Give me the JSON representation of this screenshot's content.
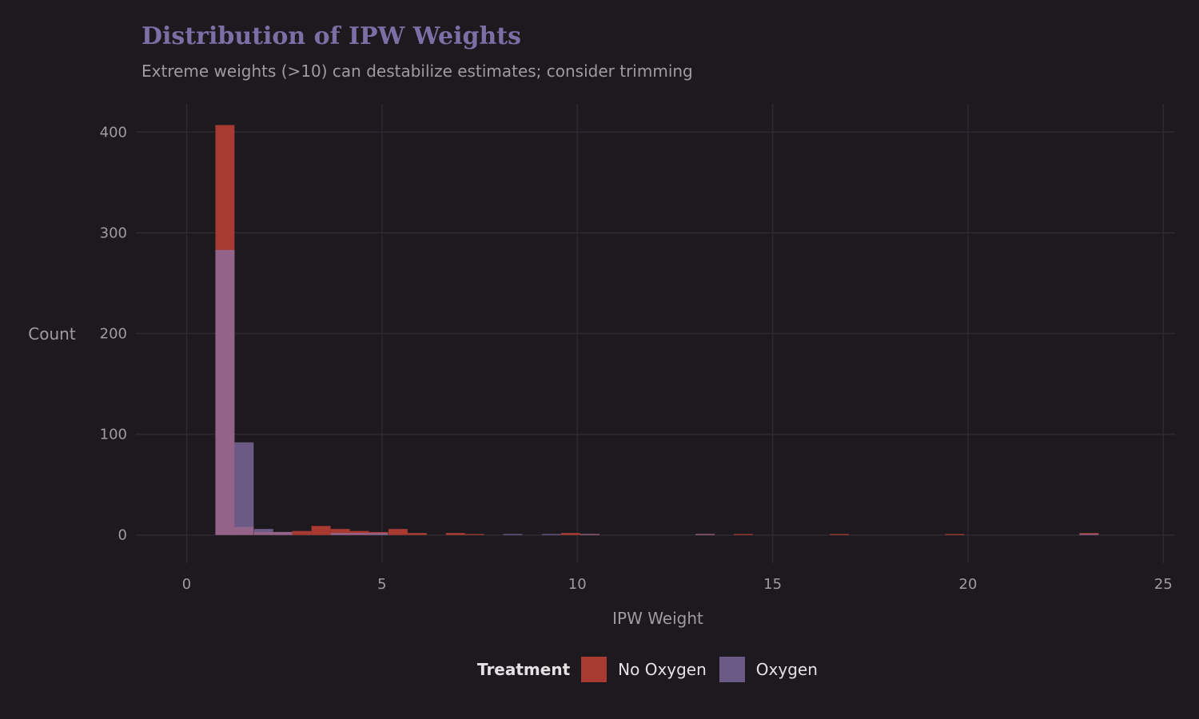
{
  "chart_data": {
    "type": "bar",
    "subtype": "overlaid histogram",
    "title": "Distribution of IPW Weights",
    "subtitle": "Extreme weights (>10) can destabilize estimates; consider trimming",
    "xlabel": "IPW Weight",
    "ylabel": "Count",
    "xlim": [
      -1.3,
      25.3
    ],
    "ylim": [
      -28,
      428
    ],
    "xticks": [
      "0",
      "5",
      "10",
      "15",
      "20",
      "25"
    ],
    "yticks": [
      "0",
      "100",
      "200",
      "300",
      "400"
    ],
    "grid": true,
    "legend": {
      "title": "Treatment",
      "position": "bottom"
    },
    "bin_centers": [
      0.98,
      1.47,
      1.97,
      2.46,
      2.95,
      3.44,
      3.93,
      4.42,
      4.91,
      5.41,
      5.9,
      6.39,
      6.88,
      7.37,
      7.86,
      8.35,
      8.85,
      9.34,
      9.83,
      10.32,
      10.81,
      11.3,
      11.79,
      12.29,
      12.78,
      13.27,
      13.76,
      14.25,
      14.74,
      15.23,
      15.73,
      16.22,
      16.71,
      17.2,
      17.69,
      18.18,
      18.67,
      19.17,
      19.66,
      20.15,
      20.64,
      21.13,
      21.62,
      22.11,
      22.61,
      23.1
    ],
    "series": [
      {
        "name": "No Oxygen",
        "color": "#a83a32",
        "values": [
          407,
          8,
          3,
          3,
          4,
          9,
          6,
          4,
          3,
          6,
          2,
          0,
          2,
          1,
          0,
          0,
          0,
          0,
          2,
          1,
          0,
          0,
          0,
          0,
          0,
          1,
          0,
          1,
          0,
          0,
          0,
          0,
          1,
          0,
          0,
          0,
          0,
          0,
          1,
          0,
          0,
          0,
          0,
          0,
          0,
          2
        ]
      },
      {
        "name": "Oxygen",
        "color": "#8a73ac",
        "values": [
          283,
          92,
          6,
          3,
          0,
          0,
          2,
          2,
          2,
          0,
          0,
          0,
          0,
          0,
          0,
          1,
          0,
          1,
          0,
          1,
          0,
          0,
          0,
          0,
          0,
          1,
          0,
          0,
          0,
          0,
          0,
          0,
          0,
          0,
          0,
          0,
          0,
          0,
          0,
          0,
          0,
          0,
          0,
          0,
          0,
          1
        ]
      }
    ]
  }
}
